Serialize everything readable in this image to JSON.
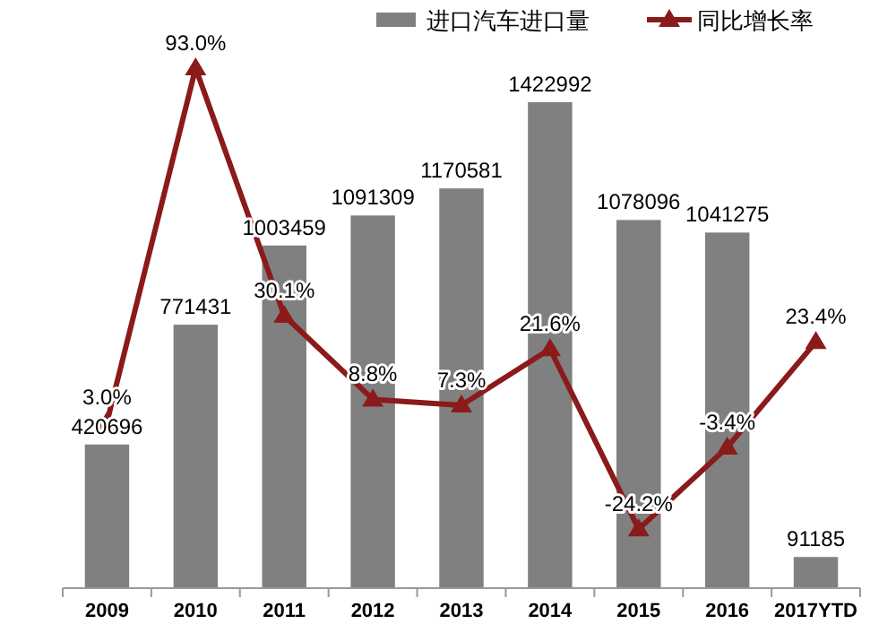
{
  "chart_data": {
    "type": "bar",
    "categories": [
      "2009",
      "2010",
      "2011",
      "2012",
      "2013",
      "2014",
      "2015",
      "2016",
      "2017YTD"
    ],
    "legend": "top right",
    "marker": "triangle",
    "series": [
      {
        "name": "进口汽车进口量",
        "color": "#808080",
        "values": [
          420696,
          771431,
          1003459,
          1091309,
          1170581,
          1422992,
          1078096,
          1041275,
          91185
        ],
        "value_labels": [
          "420696",
          "771431",
          "1003459",
          "1091309",
          "1170581",
          "1422992",
          "1078096",
          "1041275",
          "91185"
        ]
      },
      {
        "name": "同比增长率",
        "type": "line",
        "axis": "y2",
        "color": "#8b1a1a",
        "values": [
          3.0,
          93.0,
          30.1,
          8.8,
          7.3,
          21.6,
          -24.2,
          -3.4,
          23.4
        ],
        "value_labels": [
          "3.0%",
          "93.0%",
          "30.1%",
          "8.8%",
          "7.3%",
          "21.6%",
          "-24.2%",
          "-3.4%",
          "23.4%"
        ]
      }
    ]
  }
}
